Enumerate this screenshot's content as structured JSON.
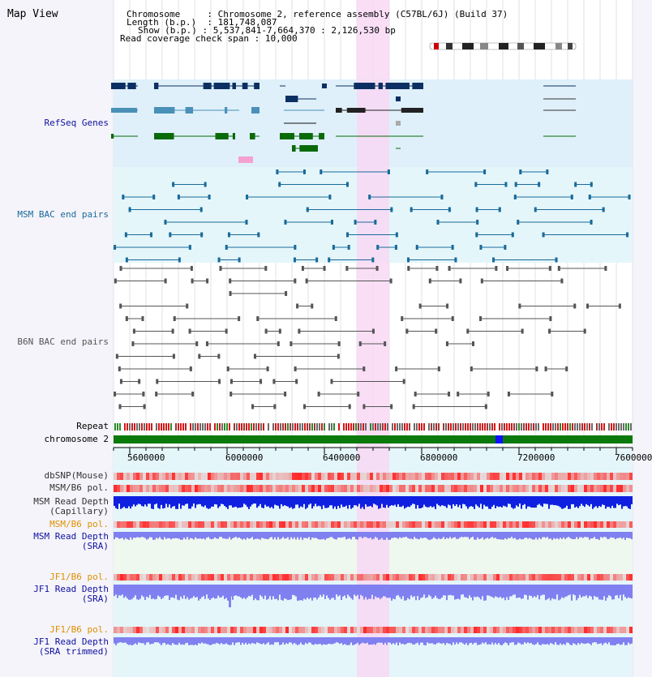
{
  "title": "Map View",
  "info": {
    "chromosome_label": "Chromosome",
    "chromosome_value": "Chromosome 2, reference assembly (C57BL/6J) (Build 37)",
    "length_label": "Length (b.p.)",
    "length_value": "181,748,087",
    "show_label": "Show (b.p.)",
    "show_value": "5,537,841-7,664,370 : 2,126,530 bp",
    "coverage_label": "Read coverage check span",
    "coverage_value": "10,000"
  },
  "tracks": {
    "refseq": "RefSeq Genes",
    "msm_bac": "MSM BAC end pairs",
    "b6n_bac": "B6N BAC end pairs",
    "repeat": "Repeat",
    "chromosome": "chromosome 2",
    "dbsnp": "dbSNP(Mouse)",
    "msm_b6_pol": "MSM/B6 pol.",
    "msm_read_depth_cap_1": "MSM Read Depth",
    "msm_read_depth_cap_2": "(Capillary)",
    "msm_b6_pol_2": "MSM/B6 pol.",
    "msm_read_depth_sra_1": "MSM Read Depth",
    "msm_read_depth_sra_2": "(SRA)",
    "jf1_b6_pol": "JF1/B6 pol.",
    "jf1_read_depth_sra_1": "JF1 Read Depth",
    "jf1_read_depth_sra_2": "(SRA)",
    "jf1_b6_pol_2": "JF1/B6 pol.",
    "jf1_read_depth_trim_1": "JF1 Read Depth",
    "jf1_read_depth_trim_2": "(SRA trimmed)"
  },
  "axis": {
    "ticks": [
      "5600000",
      "6000000",
      "6400000",
      "6800000",
      "7200000",
      "7600000"
    ]
  },
  "colors": {
    "refseq_bg": "#dff0fa",
    "msm_bg": "#e4f6fa",
    "highlight": "#f8d8f4",
    "refseq_dark": "#0c2f63",
    "refseq_mid": "#4a90b8",
    "refseq_green": "#0a6a0a",
    "msm_line": "#1a6a9a",
    "b6n_line": "#555555",
    "chromosome_green": "#0a7a0a",
    "depth_blue": "#1020e0",
    "depth_light": "#8080f0",
    "label_blue": "#1010a0",
    "label_orange": "#e09000"
  }
}
